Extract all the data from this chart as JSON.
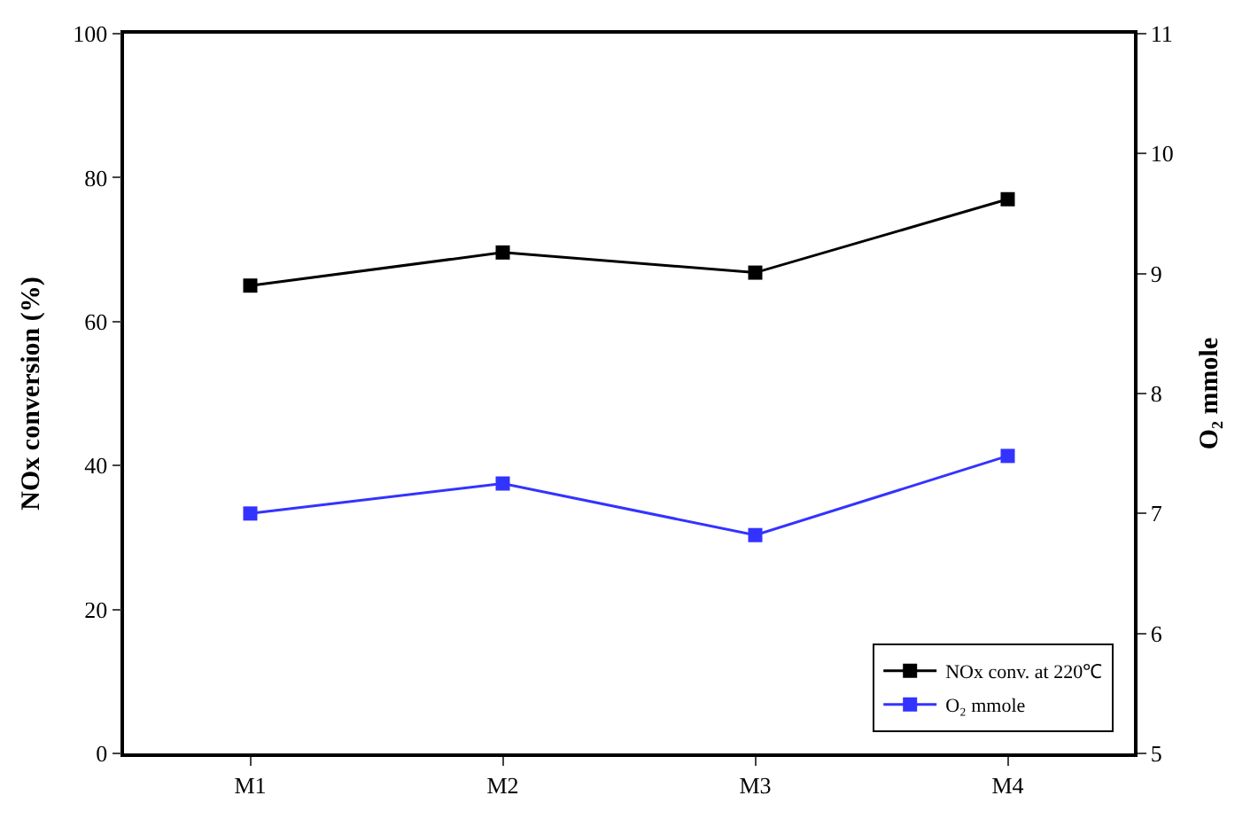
{
  "chart_data": {
    "type": "line",
    "categories": [
      "M1",
      "M2",
      "M3",
      "M4"
    ],
    "ylabel": "NOx conversion (%)",
    "y2label": "O₂ mmole",
    "series": [
      {
        "name": "NOx conv. at 220℃",
        "color": "#000000",
        "values": [
          65,
          69.6,
          66.8,
          77
        ]
      },
      {
        "name": "O₂ mmole",
        "color": "#3333ff",
        "values": [
          7.0,
          7.25,
          6.82,
          7.48
        ],
        "axis": "y2"
      }
    ],
    "ylim": [
      0,
      100
    ],
    "yticks": [
      0,
      20,
      40,
      60,
      80,
      100
    ],
    "y2lim": [
      5,
      11
    ],
    "y2ticks": [
      5,
      6,
      7,
      8,
      9,
      10,
      11
    ],
    "legend": "bottom right",
    "marker": "square",
    "line_style": "solid"
  }
}
